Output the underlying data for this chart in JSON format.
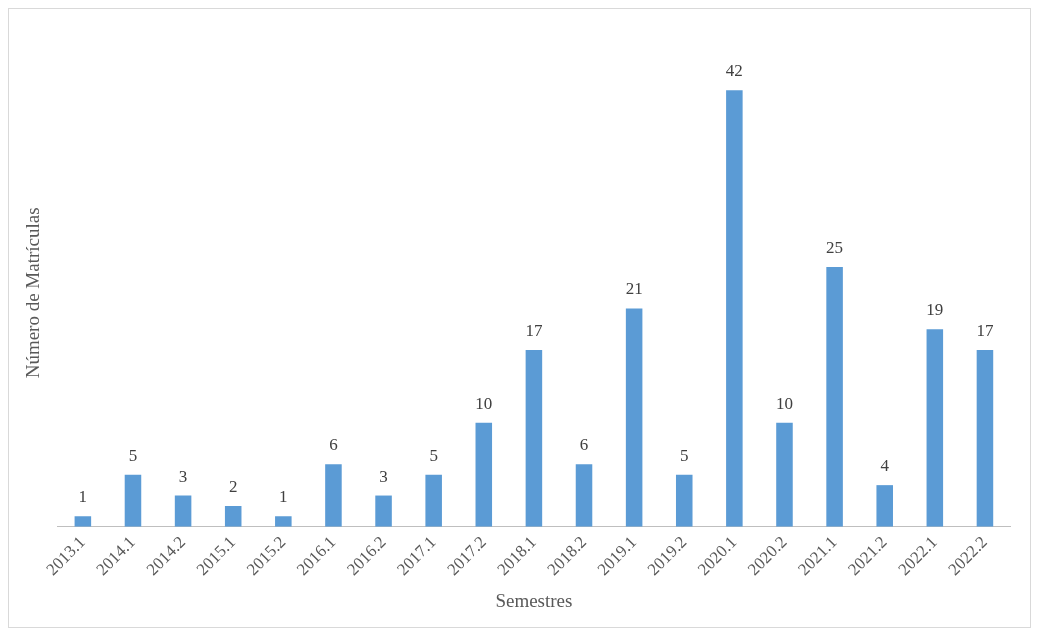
{
  "chart_data": {
    "type": "bar",
    "xlabel": "Semestres",
    "ylabel": "Número de Matrículas",
    "categories": [
      "2013.1",
      "2014.1",
      "2014.2",
      "2015.1",
      "2015.2",
      "2016.1",
      "2016.2",
      "2017.1",
      "2017.2",
      "2018.1",
      "2018.2",
      "2019.1",
      "2019.2",
      "2020.1",
      "2020.2",
      "2021.1",
      "2021.2",
      "2022.1",
      "2022.2"
    ],
    "values": [
      1,
      5,
      3,
      2,
      1,
      6,
      3,
      5,
      10,
      17,
      6,
      21,
      5,
      42,
      10,
      25,
      4,
      19,
      17
    ],
    "color": "#5b9bd5",
    "data_labels": true,
    "grid": false,
    "legend": false
  }
}
